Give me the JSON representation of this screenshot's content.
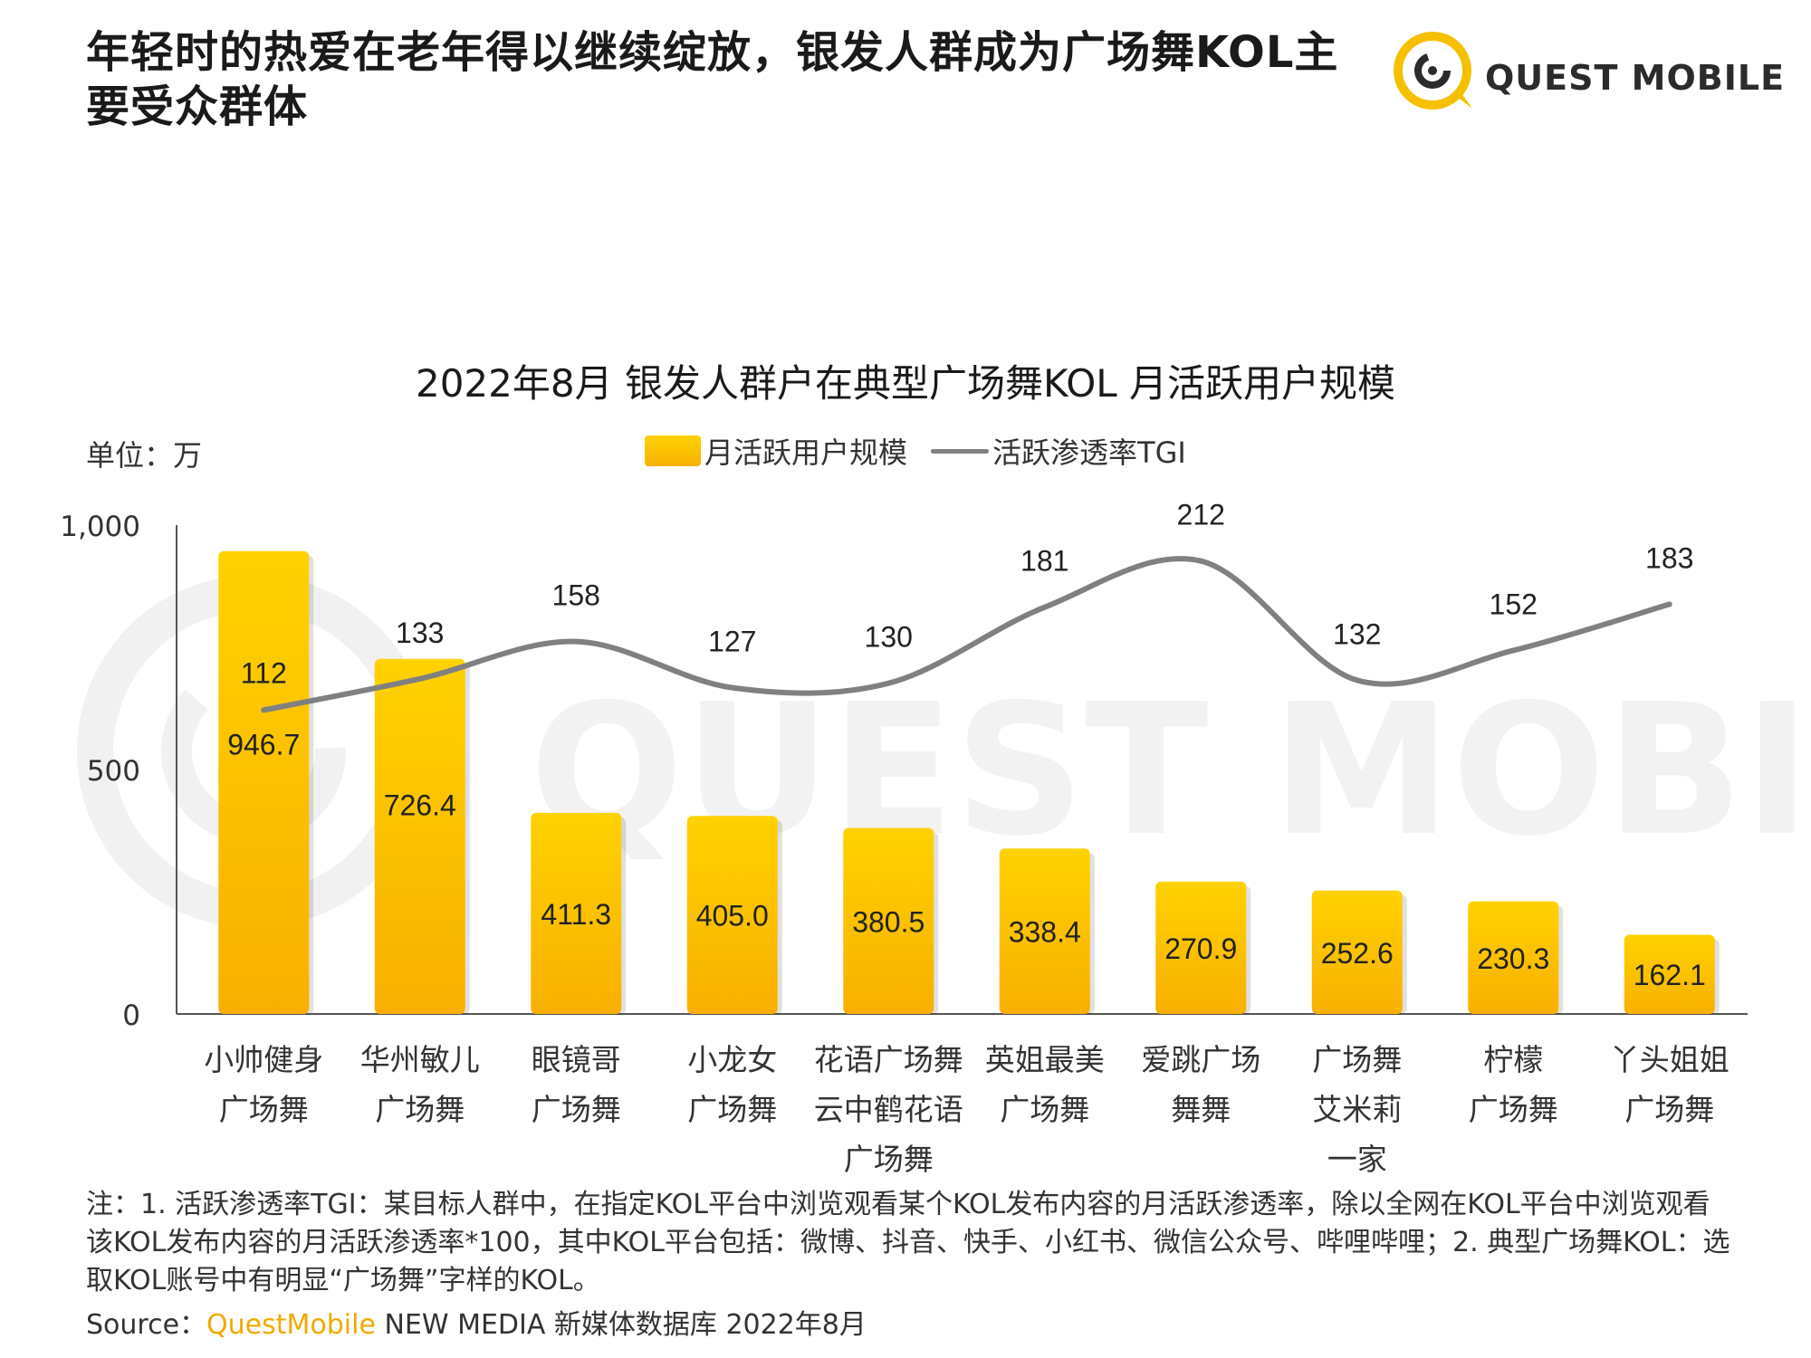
{
  "page": {
    "title": "年轻时的热爱在老年得以继续绽放，银发人群成为广场舞KOL主要受众群体",
    "logo_text": "QUEST MOBILE",
    "watermark_text": "QUEST MOBILE"
  },
  "unit": "单位：万",
  "legend": {
    "bar_label": "月活跃用户规模",
    "line_label": "活跃渗透率TGI"
  },
  "colors": {
    "bar_top": "#ffd200",
    "bar_bottom": "#f8b000",
    "line": "#808080",
    "brand": "#f2a900"
  },
  "chart_data": {
    "type": "bar",
    "title": "2022年8月 银发人群户在典型广场舞KOL 月活跃用户规模",
    "ylim": [
      0,
      1000
    ],
    "yticks": [
      "0",
      "500",
      "1,000"
    ],
    "ytick_values": [
      0,
      500,
      1000
    ],
    "categories": [
      [
        "小帅健身",
        "广场舞"
      ],
      [
        "华州敏儿",
        "广场舞"
      ],
      [
        "眼镜哥",
        "广场舞"
      ],
      [
        "小龙女",
        "广场舞"
      ],
      [
        "花语广场舞",
        "云中鹤花语",
        "广场舞"
      ],
      [
        "英姐最美",
        "广场舞"
      ],
      [
        "爱跳广场",
        "舞舞"
      ],
      [
        "广场舞",
        "艾米莉",
        "一家"
      ],
      [
        "柠檬",
        "广场舞"
      ],
      [
        "丫头姐姐",
        "广场舞"
      ]
    ],
    "series": [
      {
        "name": "月活跃用户规模",
        "type": "bar",
        "values": [
          946.7,
          726.4,
          411.3,
          405.0,
          380.5,
          338.4,
          270.9,
          252.6,
          230.3,
          162.1
        ],
        "labels": [
          "946.7",
          "726.4",
          "411.3",
          "405.0",
          "380.5",
          "338.4",
          "270.9",
          "252.6",
          "230.3",
          "162.1"
        ]
      },
      {
        "name": "活跃渗透率TGI",
        "type": "line",
        "values": [
          112,
          133,
          158,
          127,
          130,
          181,
          212,
          132,
          152,
          183
        ],
        "labels": [
          "112",
          "133",
          "158",
          "127",
          "130",
          "181",
          "212",
          "132",
          "152",
          "183"
        ]
      }
    ]
  },
  "notes": "注：1. 活跃渗透率TGI：某目标人群中，在指定KOL平台中浏览观看某个KOL发布内容的月活跃渗透率，除以全网在KOL平台中浏览观看该KOL发布内容的月活跃渗透率*100，其中KOL平台包括：微博、抖音、快手、小红书、微信公众号、哔哩哔哩；2. 典型广场舞KOL：选取KOL账号中有明显“广场舞”字样的KOL。",
  "source": {
    "prefix": "Source：",
    "brand": "QuestMobile",
    "suffix": " NEW MEDIA 新媒体数据库 2022年8月"
  }
}
